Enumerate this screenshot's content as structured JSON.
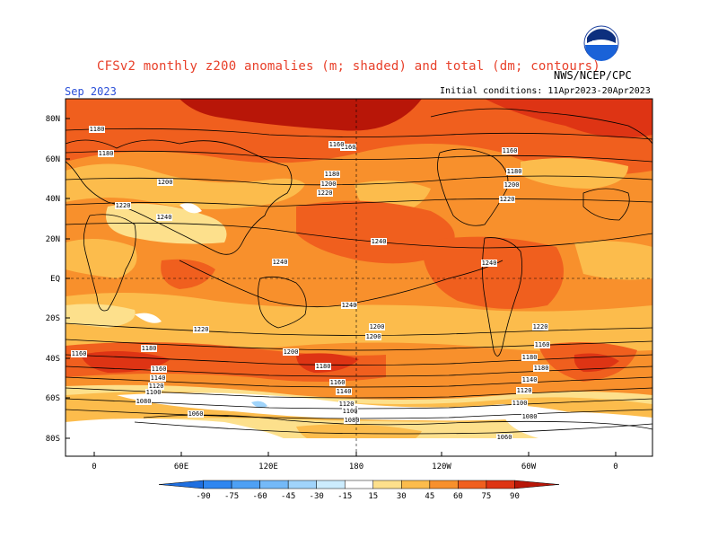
{
  "header": {
    "title": "CFSv2 monthly z200 anomalies (m; shaded) and total (dm; contours)",
    "agency": "NWS/NCEP/CPC",
    "month": "Sep 2023",
    "initial_conditions": "Initial conditions: 11Apr2023-20Apr2023",
    "logo_text": "NOAA"
  },
  "axes": {
    "latitudes": [
      "80N",
      "60N",
      "40N",
      "20N",
      "EQ",
      "20S",
      "40S",
      "60S",
      "80S"
    ],
    "longitudes": [
      "0",
      "60E",
      "120E",
      "180",
      "120W",
      "60W",
      "0"
    ]
  },
  "contour_labels": [
    "1180",
    "1180",
    "1200",
    "1220",
    "1240",
    "1160",
    "1180",
    "1200",
    "1220",
    "1240",
    "1160",
    "1180",
    "1200",
    "1220",
    "1240",
    "1240",
    "1240",
    "1220",
    "1200",
    "1220",
    "1200",
    "1160",
    "1180",
    "1200",
    "1180",
    "1160",
    "1140",
    "1120",
    "1100",
    "1080",
    "1060",
    "1180",
    "1160",
    "1140",
    "1120",
    "1100",
    "1080",
    "1060",
    "1180",
    "1160",
    "1140",
    "1120",
    "1100",
    "1080",
    "1160",
    "1180",
    "1060"
  ],
  "colorbar": {
    "ticks": [
      "-90",
      "-75",
      "-60",
      "-45",
      "-30",
      "-15",
      "15",
      "30",
      "45",
      "60",
      "75",
      "90"
    ],
    "colors": [
      "#1f6fe0",
      "#2f86f0",
      "#4ea0f4",
      "#74b9f8",
      "#a0d4fb",
      "#ccecfd",
      "#ffffff",
      "#fde08c",
      "#fcbc4c",
      "#f8902c",
      "#f05f1e",
      "#de3414",
      "#b81608"
    ]
  },
  "map_colors": {
    "background": "#f8902c",
    "anomaly_levels": [
      "#ffffff",
      "#fde08c",
      "#fcbc4c",
      "#f8902c",
      "#f05f1e",
      "#de3414",
      "#b81608",
      "#d9ecfc"
    ]
  }
}
